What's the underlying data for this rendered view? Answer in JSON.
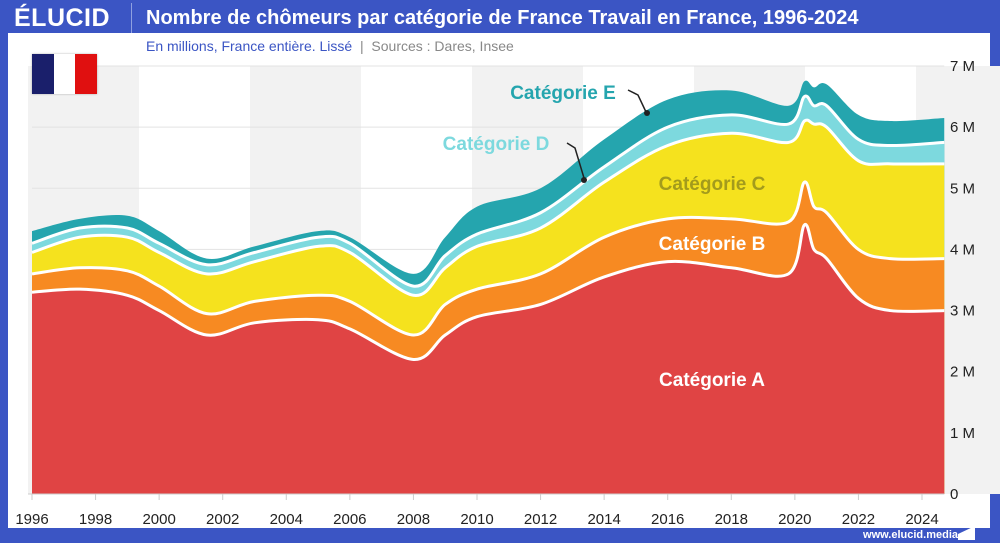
{
  "header": {
    "logo": "ÉLUCID",
    "title": "Nombre de chômeurs par catégorie de France Travail en France, 1996-2024",
    "subtitle": "En millions, France entière. Lissé",
    "separator": "|",
    "sources": "Sources : Dares, Insee"
  },
  "footer": {
    "url": "www.elucid.media"
  },
  "flag": {
    "colors": [
      "#1a1f6b",
      "#ffffff",
      "#e01010"
    ]
  },
  "chart_data": {
    "type": "area",
    "stacked": true,
    "xlim": [
      1996,
      2024.7
    ],
    "ylim": [
      0,
      7
    ],
    "x_ticks": [
      "1996",
      "1998",
      "2000",
      "2002",
      "2004",
      "2006",
      "2008",
      "2010",
      "2012",
      "2014",
      "2016",
      "2018",
      "2020",
      "2022",
      "2024"
    ],
    "y_ticks": [
      "0",
      "1 M",
      "2 M",
      "3 M",
      "4 M",
      "5 M",
      "6 M",
      "7 M"
    ],
    "y_axis_side": "right",
    "grid": true,
    "x": [
      1996,
      1997.5,
      1999,
      2000,
      2001.5,
      2003,
      2005,
      2006,
      2008,
      2009,
      2010,
      2012,
      2014,
      2016,
      2018,
      2019.8,
      2020.3,
      2020.6,
      2021,
      2022,
      2023,
      2024.7
    ],
    "series": [
      {
        "name": "Catégorie A",
        "color": "#e04444",
        "label_color": "#ffffff",
        "values": [
          3.3,
          3.35,
          3.25,
          3.0,
          2.6,
          2.8,
          2.85,
          2.7,
          2.2,
          2.6,
          2.9,
          3.1,
          3.55,
          3.8,
          3.7,
          3.6,
          4.4,
          4.0,
          3.85,
          3.2,
          3.0,
          3.0
        ]
      },
      {
        "name": "Catégorie B",
        "color": "#f78a22",
        "label_color": "#ffffff",
        "values": [
          0.3,
          0.35,
          0.4,
          0.4,
          0.35,
          0.35,
          0.4,
          0.45,
          0.4,
          0.5,
          0.45,
          0.5,
          0.65,
          0.7,
          0.8,
          0.85,
          0.7,
          0.7,
          0.75,
          0.8,
          0.85,
          0.85
        ]
      },
      {
        "name": "Catégorie C",
        "color": "#f5e21e",
        "label_color": "#a39b1c",
        "values": [
          0.35,
          0.5,
          0.55,
          0.55,
          0.65,
          0.65,
          0.8,
          0.8,
          0.65,
          0.6,
          0.7,
          0.75,
          0.9,
          1.2,
          1.4,
          1.3,
          1.0,
          1.35,
          1.4,
          1.45,
          1.55,
          1.55
        ]
      },
      {
        "name": "Catégorie D",
        "color": "#7dd9de",
        "label_color": "#7dd9de",
        "values": [
          0.15,
          0.15,
          0.15,
          0.15,
          0.15,
          0.15,
          0.15,
          0.15,
          0.15,
          0.2,
          0.2,
          0.25,
          0.25,
          0.3,
          0.3,
          0.3,
          0.4,
          0.3,
          0.35,
          0.35,
          0.3,
          0.35
        ]
      },
      {
        "name": "Catégorie E",
        "color": "#25a5ae",
        "label_color": "#25a5ae",
        "values": [
          0.2,
          0.15,
          0.2,
          0.2,
          0.1,
          0.1,
          0.1,
          0.1,
          0.2,
          0.3,
          0.45,
          0.4,
          0.45,
          0.45,
          0.4,
          0.3,
          0.25,
          0.3,
          0.35,
          0.4,
          0.4,
          0.4
        ]
      }
    ]
  }
}
